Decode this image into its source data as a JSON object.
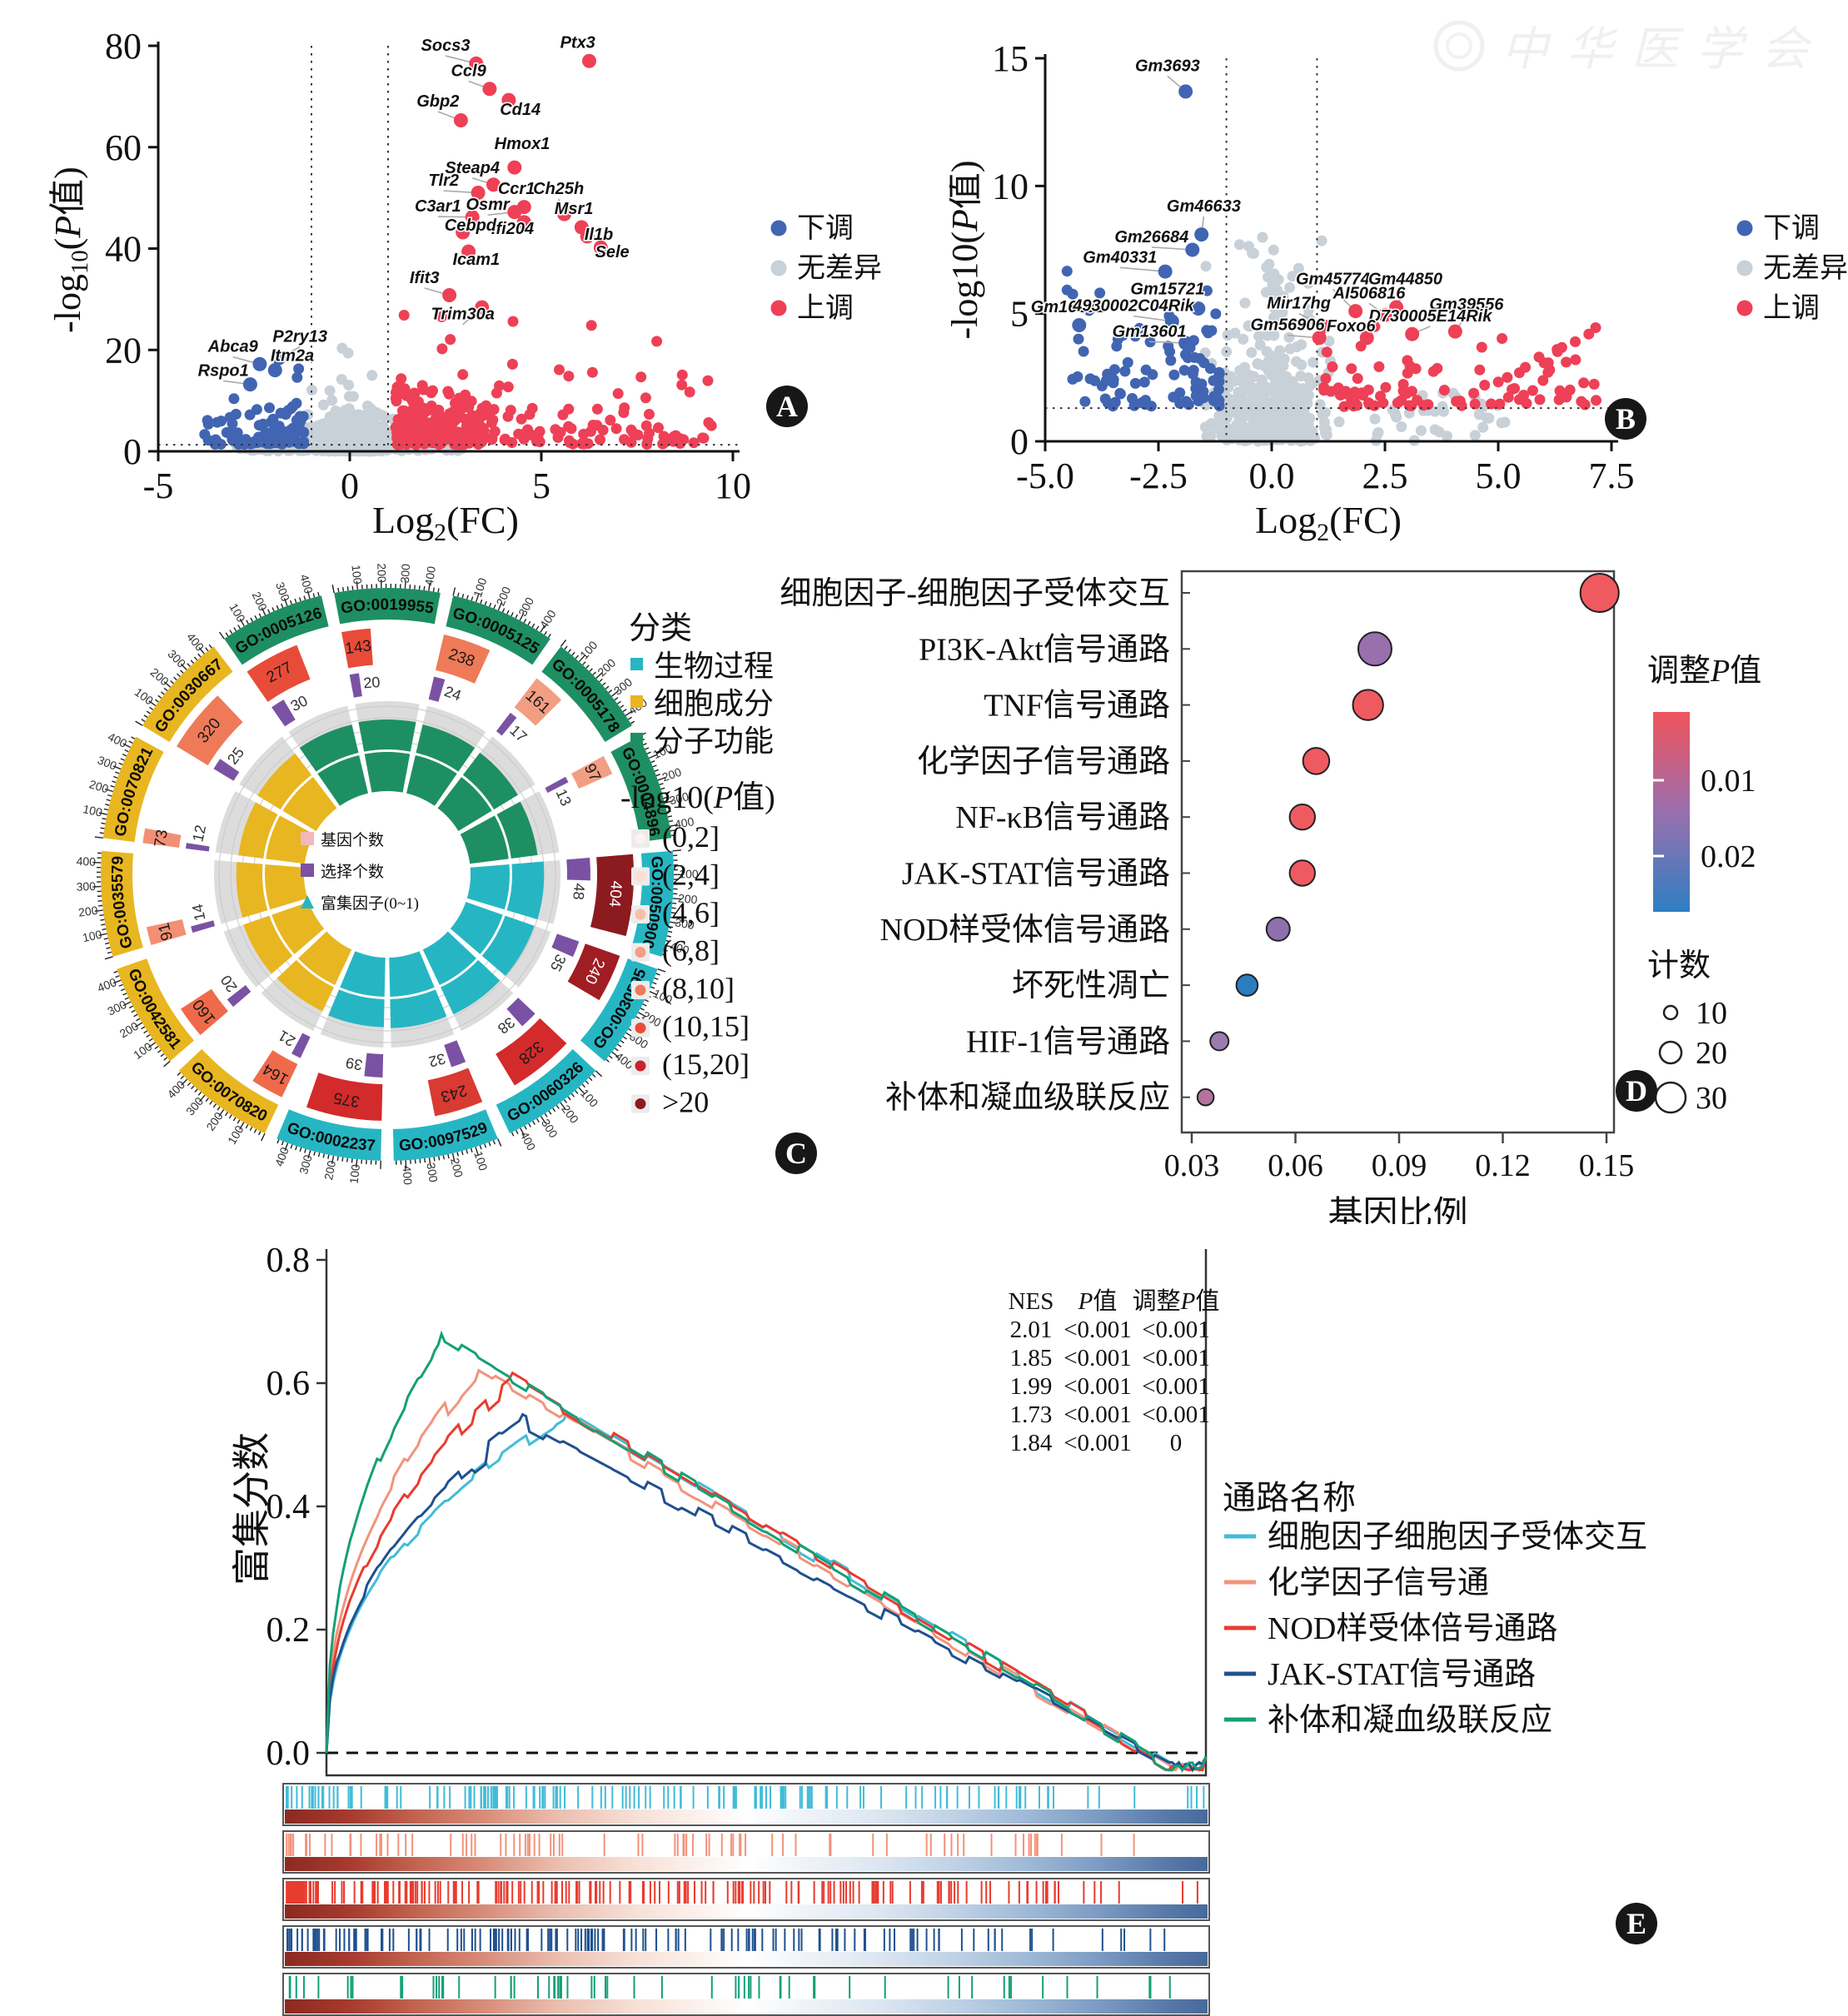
{
  "watermark": {
    "org": "中华医学会"
  },
  "chart_data": [
    {
      "panel": "A",
      "type": "scatter",
      "subtype": "volcano",
      "xlabel_parts": [
        {
          "t": "Log"
        },
        {
          "t": "2",
          "sub": true
        },
        {
          "t": "(FC)"
        }
      ],
      "ylabel_parts": [
        {
          "t": "-log"
        },
        {
          "t": "10",
          "sub": true
        },
        {
          "t": "("
        },
        {
          "t": "P",
          "i": true
        },
        {
          "t": "值)"
        }
      ],
      "xlim": [
        -5,
        10
      ],
      "ylim": [
        0,
        80
      ],
      "xticks": [
        "-5",
        "0",
        "5",
        "10"
      ],
      "yticks": [
        "0",
        "20",
        "40",
        "60",
        "80"
      ],
      "cutoff_x": [
        -1,
        1
      ],
      "cutoff_y": 1.3,
      "legend": [
        {
          "label": "下调",
          "color": "#4165b2"
        },
        {
          "label": "无差异",
          "color": "#c8d0d8"
        },
        {
          "label": "上调",
          "color": "#ee4056"
        }
      ],
      "genes_up": [
        {
          "name": "Socs3",
          "x": 3.3,
          "y": 76.5,
          "lx": 2.5,
          "ly": 79
        },
        {
          "name": "Ptx3",
          "x": 6.25,
          "y": 77,
          "lx": 5.95,
          "ly": 79.6
        },
        {
          "name": "Ccl9",
          "x": 3.65,
          "y": 71.5,
          "lx": 3.1,
          "ly": 74
        },
        {
          "name": "Cd14",
          "x": 4.15,
          "y": 69.3,
          "lx": 4.45,
          "ly": 66.4
        },
        {
          "name": "Gbp2",
          "x": 2.9,
          "y": 65.3,
          "lx": 2.3,
          "ly": 68
        },
        {
          "name": "Hmox1",
          "x": 4.3,
          "y": 56,
          "lx": 4.5,
          "ly": 59.6
        },
        {
          "name": "Steap4",
          "x": 3.75,
          "y": 52.6,
          "lx": 3.2,
          "ly": 54.9
        },
        {
          "name": "Tlr2",
          "x": 3.35,
          "y": 51,
          "lx": 2.45,
          "ly": 52.4
        },
        {
          "name": "Ccr1",
          "x": 4.55,
          "y": 48.2,
          "lx": 4.35,
          "ly": 50.8
        },
        {
          "name": "Ch25h",
          "x": 5.6,
          "y": 46.8,
          "lx": 5.45,
          "ly": 50.8
        },
        {
          "name": "C3ar1",
          "x": 3.2,
          "y": 46.2,
          "lx": 2.3,
          "ly": 47.3
        },
        {
          "name": "Osmr",
          "x": 4.3,
          "y": 47.2,
          "lx": 3.6,
          "ly": 47.6
        },
        {
          "name": "Msr1",
          "x": 6.05,
          "y": 44.2,
          "lx": 5.85,
          "ly": 46.8
        },
        {
          "name": "Ifi204",
          "x": 4.55,
          "y": 45.2,
          "lx": 4.25,
          "ly": 42.9
        },
        {
          "name": "Cebpd",
          "x": 2.95,
          "y": 43.2,
          "lx": 3.15,
          "ly": 43.5
        },
        {
          "name": "Il1b",
          "x": 6.2,
          "y": 42.4,
          "lx": 6.5,
          "ly": 41.7
        },
        {
          "name": "Sele",
          "x": 6.55,
          "y": 40.2,
          "lx": 6.85,
          "ly": 38.3
        },
        {
          "name": "Icam1",
          "x": 3.1,
          "y": 39.4,
          "lx": 3.3,
          "ly": 36.8
        },
        {
          "name": "Ifit3",
          "x": 2.6,
          "y": 30.8,
          "lx": 1.95,
          "ly": 33.2
        },
        {
          "name": "Trim30a",
          "x": 3.45,
          "y": 28.4,
          "lx": 2.95,
          "ly": 26
        }
      ],
      "genes_down": [
        {
          "name": "Abca9",
          "x": -2.35,
          "y": 17.2,
          "lx": -3.05,
          "ly": 19.6
        },
        {
          "name": "P2ry13",
          "x": -1.85,
          "y": 18.4,
          "lx": -1.3,
          "ly": 21.6
        },
        {
          "name": "Itm2a",
          "x": -1.95,
          "y": 16,
          "lx": -1.5,
          "ly": 17.8
        },
        {
          "name": "Rspo1",
          "x": -2.6,
          "y": 13.2,
          "lx": -3.3,
          "ly": 14.9
        }
      ]
    },
    {
      "panel": "B",
      "type": "scatter",
      "subtype": "volcano",
      "xlabel_parts": [
        {
          "t": "Log"
        },
        {
          "t": "2",
          "sub": true
        },
        {
          "t": "(FC)"
        }
      ],
      "ylabel_parts": [
        {
          "t": "-log10("
        },
        {
          "t": "P",
          "i": true
        },
        {
          "t": "值)"
        }
      ],
      "xlim": [
        -5,
        7.5
      ],
      "ylim": [
        0,
        15
      ],
      "xticks": [
        "-5.0",
        "-2.5",
        "0.0",
        "2.5",
        "5.0",
        "7.5"
      ],
      "yticks": [
        "0",
        "5",
        "10",
        "15"
      ],
      "cutoff_x": [
        -1,
        1
      ],
      "cutoff_y": 1.3,
      "legend": [
        {
          "label": "下调",
          "color": "#4165b2"
        },
        {
          "label": "无差异",
          "color": "#c8d0d8"
        },
        {
          "label": "上调",
          "color": "#ee4056"
        }
      ],
      "genes_down": [
        {
          "name": "Gm3693",
          "x": -1.9,
          "y": 13.7,
          "lx": -2.3,
          "ly": 14.5
        },
        {
          "name": "Gm46633",
          "x": -1.55,
          "y": 8.1,
          "lx": -1.5,
          "ly": 9
        },
        {
          "name": "Gm26684",
          "x": -1.75,
          "y": 7.5,
          "lx": -2.65,
          "ly": 7.8
        },
        {
          "name": "Gm40331",
          "x": -2.35,
          "y": 6.65,
          "lx": -3.35,
          "ly": 7
        },
        {
          "name": "Gm15721",
          "x": -1.62,
          "y": 5.2,
          "lx": -2.3,
          "ly": 5.75
        },
        {
          "name": "Gm16291",
          "x": -4.25,
          "y": 4.55,
          "lx": -4.5,
          "ly": 5.05
        },
        {
          "name": "4930002C04Rik",
          "x": -2.2,
          "y": 4.7,
          "lx": -3.05,
          "ly": 5.1
        },
        {
          "name": "Gm13601",
          "x": -1.9,
          "y": 3.85,
          "lx": -2.7,
          "ly": 4.1
        }
      ],
      "genes_up": [
        {
          "name": "Gm45774",
          "x": 1.85,
          "y": 5.1,
          "lx": 1.35,
          "ly": 6.15
        },
        {
          "name": "Gm44850",
          "x": 2.75,
          "y": 5.25,
          "lx": 2.95,
          "ly": 6.15
        },
        {
          "name": "AI506816",
          "x": 2.5,
          "y": 4.95,
          "lx": 2.15,
          "ly": 5.6
        },
        {
          "name": "Mir17hg",
          "x": 1.15,
          "y": 4.5,
          "lx": 0.6,
          "ly": 5.2
        },
        {
          "name": "Gm39556",
          "x": 4.05,
          "y": 4.3,
          "lx": 4.3,
          "ly": 5.15
        },
        {
          "name": "D730005E14Rik",
          "x": 3.1,
          "y": 4.2,
          "lx": 3.5,
          "ly": 4.7
        },
        {
          "name": "Gm56906",
          "x": 1.05,
          "y": 4.05,
          "lx": 0.35,
          "ly": 4.35
        },
        {
          "name": "Foxo6",
          "x": 2.1,
          "y": 4.05,
          "lx": 1.75,
          "ly": 4.3
        }
      ]
    },
    {
      "panel": "C",
      "type": "circular-go",
      "category_legend": {
        "title": "分类",
        "items": [
          {
            "label": "生物过程",
            "color": "#26b6c3"
          },
          {
            "label": "细胞成分",
            "color": "#e8b620"
          },
          {
            "label": "分子功能",
            "color": "#1e8f63"
          }
        ]
      },
      "pvalue_legend": {
        "title_parts": [
          {
            "t": "-log10("
          },
          {
            "t": "P",
            "i": true
          },
          {
            "t": "值)"
          }
        ],
        "bins": [
          {
            "label": "(0,2]",
            "color": "#fdf2ee"
          },
          {
            "label": "(2,4]",
            "color": "#fadfd2"
          },
          {
            "label": "(4,6]",
            "color": "#f6c0a8"
          },
          {
            "label": "(6,8]",
            "color": "#f29e82"
          },
          {
            "label": "(8,10]",
            "color": "#ee7a58"
          },
          {
            "label": "(10,15]",
            "color": "#e84c38"
          },
          {
            "label": "(15,20]",
            "color": "#c5252b"
          },
          {
            "label": ">20",
            "color": "#8c1b20"
          }
        ]
      },
      "inner_legend": [
        {
          "label": "基因个数",
          "color": "#f2b6bc",
          "shape": "square"
        },
        {
          "label": "选择个数",
          "color": "#7b52a3",
          "shape": "square"
        },
        {
          "label": "富集因子(0~1)",
          "color": "#26b6c3",
          "shape": "triangle"
        }
      ],
      "axis_ticks": [
        "100",
        "200",
        "300",
        "400"
      ],
      "sectors": [
        {
          "id": "GO:0019955",
          "category": "分子功能",
          "count": 143,
          "selected": 20,
          "count_color": "#e84c38",
          "enrich": 0.62,
          "inner": 0.78
        },
        {
          "id": "GO:0005125",
          "category": "分子功能",
          "count": 238,
          "selected": 24,
          "count_color": "#ee7a58",
          "enrich": 0.6,
          "inner": 0.8
        },
        {
          "id": "GO:0005178",
          "category": "分子功能",
          "count": 161,
          "selected": 17,
          "count_color": "#f29e82",
          "enrich": 0.58,
          "inner": 0.72
        },
        {
          "id": "GO:0004896",
          "category": "分子功能",
          "count": 97,
          "selected": 13,
          "count_color": "#f29e82",
          "enrich": 0.55,
          "inner": 0.85
        },
        {
          "id": "GO:0050900",
          "category": "生物过程",
          "count": 404,
          "selected": 48,
          "count_color": "#8c1b20",
          "enrich": 0.66,
          "inner": 0.88
        },
        {
          "id": "GO:0030595",
          "category": "生物过程",
          "count": 240,
          "selected": 35,
          "count_color": "#a01d23",
          "enrich": 0.64,
          "inner": 0.85
        },
        {
          "id": "GO:0060326",
          "category": "生物过程",
          "count": 328,
          "selected": 38,
          "count_color": "#d32a2c",
          "enrich": 0.62,
          "inner": 0.82
        },
        {
          "id": "GO:0097529",
          "category": "生物过程",
          "count": 243,
          "selected": 32,
          "count_color": "#d93a31",
          "enrich": 0.6,
          "inner": 0.78
        },
        {
          "id": "GO:0002237",
          "category": "生物过程",
          "count": 375,
          "selected": 39,
          "count_color": "#d32a2c",
          "enrich": 0.58,
          "inner": 0.75
        },
        {
          "id": "GO:0070820",
          "category": "细胞成分",
          "count": 164,
          "selected": 21,
          "count_color": "#ef6a4a",
          "enrich": 0.55,
          "inner": 0.88
        },
        {
          "id": "GO:0042581",
          "category": "细胞成分",
          "count": 160,
          "selected": 20,
          "count_color": "#ef6a4a",
          "enrich": 0.57,
          "inner": 0.9
        },
        {
          "id": "GO:0035579",
          "category": "细胞成分",
          "count": 91,
          "selected": 14,
          "count_color": "#f28f74",
          "enrich": 0.54,
          "inner": 0.85
        },
        {
          "id": "GO:0070821",
          "category": "细胞成分",
          "count": 73,
          "selected": 12,
          "count_color": "#f28f74",
          "enrich": 0.52,
          "inner": 0.8
        },
        {
          "id": "GO:0030667",
          "category": "细胞成分",
          "count": 320,
          "selected": 25,
          "count_color": "#ee7a58",
          "enrich": 0.56,
          "inner": 0.92
        },
        {
          "id": "GO:0005126",
          "category": "分子功能",
          "count": 277,
          "selected": 30,
          "count_color": "#e84c38",
          "enrich": 0.6,
          "inner": 0.75
        }
      ]
    },
    {
      "panel": "D",
      "type": "scatter",
      "subtype": "dotplot",
      "xlabel": "基因比例",
      "xticks": [
        "0.03",
        "0.06",
        "0.09",
        "0.12",
        "0.15"
      ],
      "xlim": [
        0.03,
        0.15
      ],
      "padj_legend": {
        "title_parts": [
          {
            "t": "调整"
          },
          {
            "t": "P",
            "i": true
          },
          {
            "t": "值"
          }
        ],
        "ticks": [
          "0.01",
          "0.02"
        ],
        "gradient": [
          "#f0545c",
          "#9a6fae",
          "#2e7fc2"
        ]
      },
      "count_legend": {
        "title": "计数",
        "items": [
          {
            "label": "10",
            "r": 8
          },
          {
            "label": "20",
            "r": 13
          },
          {
            "label": "30",
            "r": 18
          }
        ]
      },
      "rows": [
        {
          "pathway": "细胞因子-细胞因子受体交互",
          "ratio": 0.148,
          "count": 30,
          "color": "#ef5a60"
        },
        {
          "pathway": "PI3K-Akt信号通路",
          "ratio": 0.083,
          "count": 25,
          "color": "#9a6fae"
        },
        {
          "pathway": "TNF信号通路",
          "ratio": 0.081,
          "count": 22,
          "color": "#ef5a60"
        },
        {
          "pathway": "化学因子信号通路",
          "ratio": 0.066,
          "count": 18,
          "color": "#ef5a60"
        },
        {
          "pathway": "NF-κB信号通路",
          "ratio": 0.062,
          "count": 17,
          "color": "#ef5a60"
        },
        {
          "pathway": "JAK-STAT信号通路",
          "ratio": 0.062,
          "count": 17,
          "color": "#ef5a60"
        },
        {
          "pathway": "NOD样受体信号通路",
          "ratio": 0.055,
          "count": 15,
          "color": "#8f6fae"
        },
        {
          "pathway": "坏死性凋亡",
          "ratio": 0.046,
          "count": 13,
          "color": "#2c7dc0"
        },
        {
          "pathway": "HIF-1信号通路",
          "ratio": 0.038,
          "count": 10,
          "color": "#9a7cb0"
        },
        {
          "pathway": "补体和凝血级联反应",
          "ratio": 0.034,
          "count": 8,
          "color": "#b5739d"
        }
      ]
    },
    {
      "panel": "E",
      "type": "line",
      "subtype": "gsea",
      "ylabel": "富集分数",
      "yticks": [
        "0.8",
        "0.6",
        "0.4",
        "0.2",
        "0.0"
      ],
      "ylim": [
        -0.05,
        0.8
      ],
      "nes_table": {
        "headers_parts": [
          [
            {
              "t": "NES"
            }
          ],
          [
            {
              "t": "P",
              "i": true
            },
            {
              "t": "值"
            }
          ],
          [
            {
              "t": "调整"
            },
            {
              "t": "P",
              "i": true
            },
            {
              "t": "值"
            }
          ]
        ],
        "rows": [
          [
            "2.01",
            "<0.001",
            "<0.001"
          ],
          [
            "1.85",
            "<0.001",
            "<0.001"
          ],
          [
            "1.99",
            "<0.001",
            "<0.001"
          ],
          [
            "1.73",
            "<0.001",
            "<0.001"
          ],
          [
            "1.84",
            "<0.001",
            "0"
          ]
        ]
      },
      "legend_title": "通路名称",
      "series": [
        {
          "name": "细胞因子细胞因子受体交互",
          "color": "#41bcd8",
          "nes": 2.01,
          "peak": 0.56,
          "peak_x": 0.27,
          "ticks": 150,
          "seed": 11
        },
        {
          "name": "化学因子信号通",
          "color": "#f2937c",
          "nes": 1.85,
          "peak": 0.63,
          "peak_x": 0.17,
          "ticks": 80,
          "seed": 22
        },
        {
          "name": "NOD样受体倍号通路",
          "color": "#e73c30",
          "nes": 1.99,
          "peak": 0.61,
          "peak_x": 0.21,
          "ticks": 190,
          "seed": 33
        },
        {
          "name": "JAK-STAT信号通路",
          "color": "#20508e",
          "nes": 1.73,
          "peak": 0.54,
          "peak_x": 0.22,
          "ticks": 150,
          "seed": 44
        },
        {
          "name": "补体和凝血级联反应",
          "color": "#14a077",
          "nes": 1.84,
          "peak": 0.68,
          "peak_x": 0.13,
          "ticks": 60,
          "seed": 55
        }
      ]
    }
  ]
}
